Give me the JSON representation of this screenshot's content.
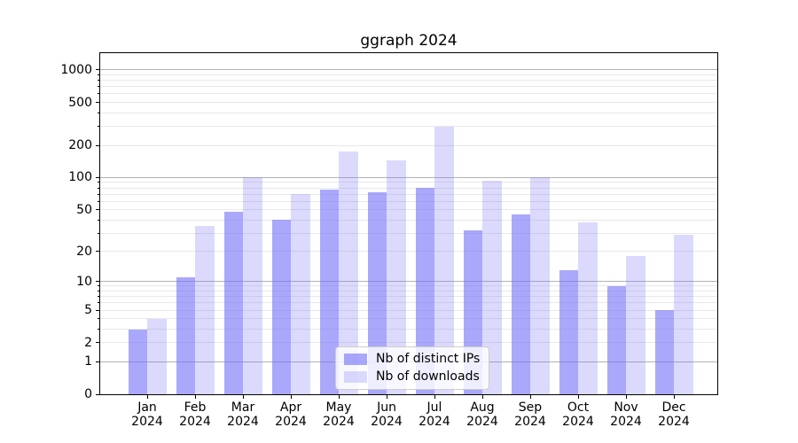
{
  "chart_data": {
    "type": "bar",
    "title": "ggraph 2024",
    "categories": [
      "Jan",
      "Feb",
      "Mar",
      "Apr",
      "May",
      "Jun",
      "Jul",
      "Aug",
      "Sep",
      "Oct",
      "Nov",
      "Dec"
    ],
    "category_year": "2024",
    "series": [
      {
        "name": "Nb of distinct IPs",
        "values": [
          3,
          11,
          48,
          40,
          77,
          73,
          80,
          32,
          45,
          13,
          9,
          5
        ]
      },
      {
        "name": "Nb of downloads",
        "values": [
          4,
          35,
          100,
          70,
          175,
          145,
          300,
          93,
          100,
          38,
          18,
          29
        ]
      }
    ],
    "yscale": "log1p",
    "ylim": [
      0,
      1430
    ],
    "y_tick_labels": [
      0,
      1,
      2,
      5,
      10,
      20,
      50,
      100,
      200,
      500,
      1000
    ],
    "y_major_grid": [
      1,
      10,
      100,
      1000
    ],
    "y_minor_grid": [
      2,
      3,
      4,
      5,
      6,
      7,
      8,
      9,
      20,
      30,
      40,
      50,
      60,
      70,
      80,
      90,
      200,
      300,
      400,
      500,
      600,
      700,
      800,
      900
    ],
    "grid": true,
    "legend_position": "lower center",
    "xlabel": "",
    "ylabel": ""
  },
  "colors": {
    "bar_base": "#7471f7",
    "series_alpha": [
      0.61,
      0.26
    ],
    "grid_major": "#b2b2b2",
    "grid_minor": "#e8e8e8",
    "spine": "#000000",
    "text": "#000000",
    "legend_border": "#cccccc",
    "legend_bg": "rgba(255,255,255,0.8)"
  }
}
